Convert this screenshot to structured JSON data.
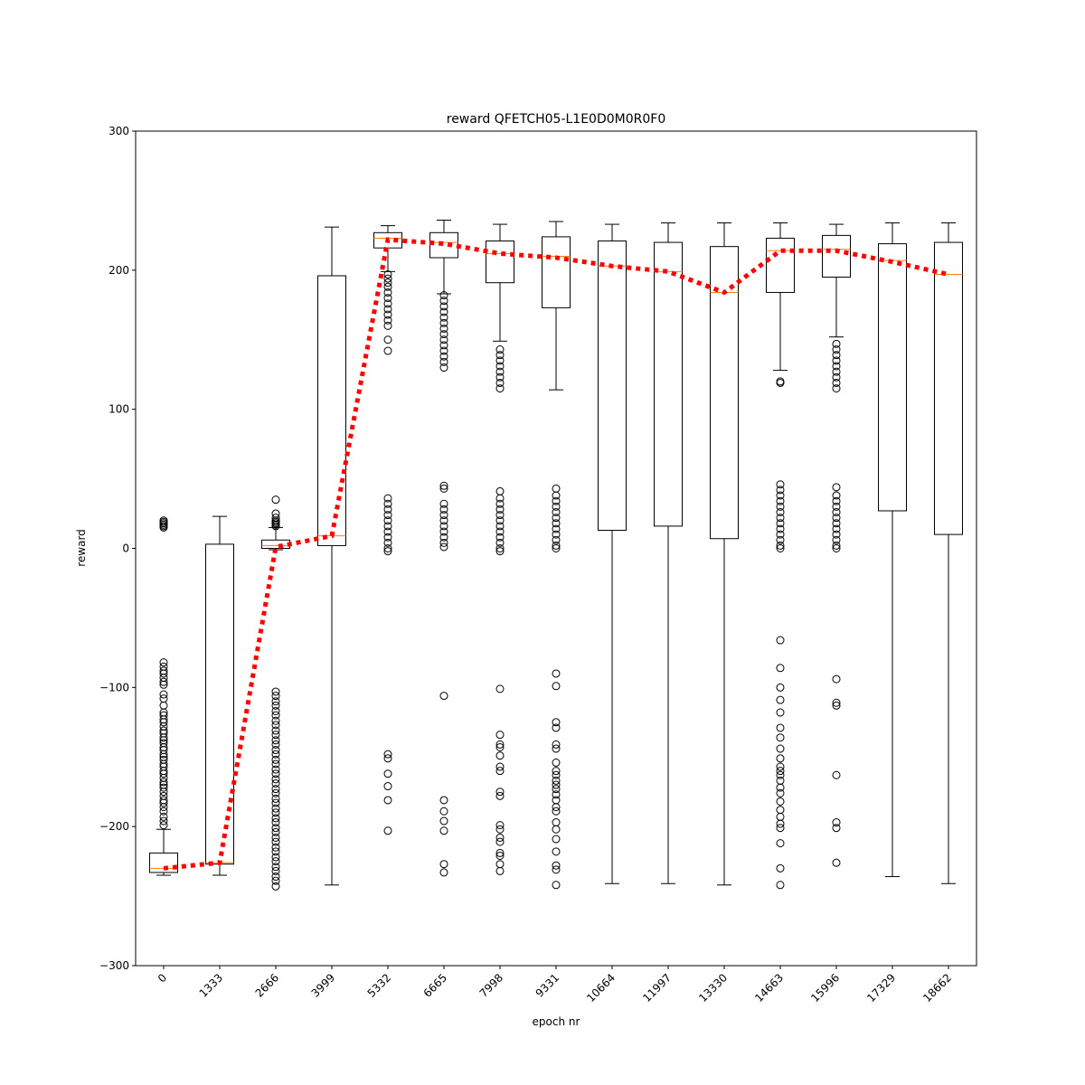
{
  "chart_data": {
    "type": "box",
    "title": "reward QFETCH05-L1E0D0M0R0F0",
    "xlabel": "epoch nr",
    "ylabel": "reward",
    "ylim": [
      -300,
      300
    ],
    "yticks": [
      -300,
      -200,
      -100,
      0,
      100,
      200,
      300
    ],
    "ytick_labels": [
      "−300",
      "−200",
      "−100",
      "0",
      "100",
      "200",
      "300"
    ],
    "grid": false,
    "categories": [
      "0",
      "1333",
      "2666",
      "3999",
      "5332",
      "6665",
      "7998",
      "9331",
      "10664",
      "11997",
      "13330",
      "14663",
      "15996",
      "17329",
      "18662"
    ],
    "boxes": [
      {
        "whislo": -235,
        "q1": -233,
        "med": -230,
        "q3": -219,
        "whishi": -202,
        "fliers": [
          15,
          16,
          17,
          18,
          19,
          20,
          -82,
          -85,
          -88,
          -90,
          -93,
          -96,
          -98,
          -105,
          -108,
          -113,
          -118,
          -120,
          -123,
          -125,
          -128,
          -131,
          -133,
          -136,
          -138,
          -140,
          -143,
          -145,
          -148,
          -150,
          -152,
          -155,
          -157,
          -160,
          -162,
          -165,
          -168,
          -170,
          -172,
          -175,
          -178,
          -181,
          -183,
          -186,
          -189,
          -193,
          -196,
          -199
        ]
      },
      {
        "whislo": -235,
        "q1": -227,
        "med": -226,
        "q3": 3,
        "whishi": 23,
        "fliers": []
      },
      {
        "whislo": -1,
        "q1": 0,
        "med": 2,
        "q3": 6,
        "whishi": 15,
        "fliers": [
          16,
          17,
          18,
          19,
          20,
          22,
          25,
          35,
          -103,
          -106,
          -110,
          -113,
          -117,
          -120,
          -124,
          -127,
          -131,
          -134,
          -138,
          -141,
          -145,
          -148,
          -152,
          -155,
          -159,
          -162,
          -166,
          -169,
          -173,
          -176,
          -180,
          -183,
          -187,
          -190,
          -194,
          -197,
          -201,
          -204,
          -208,
          -211,
          -215,
          -218,
          -222,
          -225,
          -229,
          -232,
          -236,
          -239,
          -243
        ]
      },
      {
        "whislo": -242,
        "q1": 2,
        "med": 9,
        "q3": 196,
        "whishi": 231,
        "fliers": []
      },
      {
        "whislo": 199,
        "q1": 216,
        "med": 223,
        "q3": 227,
        "whishi": 232,
        "fliers": [
          142,
          150,
          160,
          164,
          168,
          172,
          176,
          180,
          184,
          188,
          191,
          194,
          197,
          36,
          32,
          28,
          24,
          20,
          16,
          12,
          8,
          4,
          0,
          -2,
          -148,
          -151,
          -162,
          -171,
          -181,
          -203
        ]
      },
      {
        "whislo": 183,
        "q1": 209,
        "med": 220,
        "q3": 227,
        "whishi": 236,
        "fliers": [
          130,
          134,
          138,
          142,
          146,
          150,
          154,
          158,
          162,
          166,
          170,
          174,
          178,
          182,
          45,
          43,
          32,
          28,
          24,
          20,
          16,
          12,
          8,
          4,
          1,
          -106,
          -181,
          -189,
          -196,
          -203,
          -227,
          -233
        ]
      },
      {
        "whislo": 149,
        "q1": 191,
        "med": 212,
        "q3": 221,
        "whishi": 233,
        "fliers": [
          115,
          119,
          123,
          127,
          131,
          135,
          139,
          143,
          41,
          36,
          32,
          28,
          24,
          20,
          16,
          12,
          8,
          4,
          0,
          -2,
          -101,
          -134,
          -141,
          -143,
          -149,
          -157,
          -160,
          -175,
          -178,
          -199,
          -202,
          -208,
          -211,
          -219,
          -221,
          -227,
          -232
        ]
      },
      {
        "whislo": 114,
        "q1": 173,
        "med": 210,
        "q3": 224,
        "whishi": 235,
        "fliers": [
          43,
          38,
          34,
          30,
          26,
          22,
          18,
          14,
          10,
          6,
          2,
          0,
          -90,
          -99,
          -125,
          -129,
          -141,
          -144,
          -154,
          -160,
          -163,
          -167,
          -170,
          -173,
          -177,
          -181,
          -186,
          -189,
          -197,
          -202,
          -209,
          -218,
          -228,
          -231,
          -242
        ]
      },
      {
        "whislo": -241,
        "q1": 13,
        "med": 203,
        "q3": 221,
        "whishi": 233,
        "fliers": []
      },
      {
        "whislo": -241,
        "q1": 16,
        "med": 199,
        "q3": 220,
        "whishi": 234,
        "fliers": []
      },
      {
        "whislo": -242,
        "q1": 7,
        "med": 184,
        "q3": 217,
        "whishi": 234,
        "fliers": []
      },
      {
        "whislo": 128,
        "q1": 184,
        "med": 214,
        "q3": 223,
        "whishi": 234,
        "fliers": [
          119,
          120,
          46,
          42,
          38,
          34,
          30,
          26,
          22,
          18,
          14,
          10,
          6,
          2,
          0,
          -66,
          -86,
          -100,
          -109,
          -118,
          -129,
          -136,
          -144,
          -151,
          -157,
          -160,
          -163,
          -167,
          -172,
          -176,
          -182,
          -188,
          -193,
          -198,
          -201,
          -212,
          -230,
          -242
        ]
      },
      {
        "whislo": 152,
        "q1": 195,
        "med": 215,
        "q3": 225,
        "whishi": 233,
        "fliers": [
          115,
          119,
          123,
          127,
          131,
          135,
          139,
          143,
          147,
          44,
          38,
          34,
          30,
          26,
          22,
          18,
          14,
          10,
          6,
          2,
          0,
          -94,
          -111,
          -113,
          -163,
          -197,
          -201,
          -226
        ]
      },
      {
        "whislo": -236,
        "q1": 27,
        "med": 207,
        "q3": 219,
        "whishi": 234,
        "fliers": []
      },
      {
        "whislo": -241,
        "q1": 10,
        "med": 197,
        "q3": 220,
        "whishi": 234,
        "fliers": []
      }
    ],
    "mean_line": [
      -230,
      -226,
      1,
      9,
      222,
      219,
      212,
      209,
      203,
      199,
      184,
      214,
      214,
      206,
      197
    ],
    "colors": {
      "box": "#000000",
      "median": "#ff7f0e",
      "mean_line": "#ff0000",
      "flier": "#000000"
    }
  }
}
